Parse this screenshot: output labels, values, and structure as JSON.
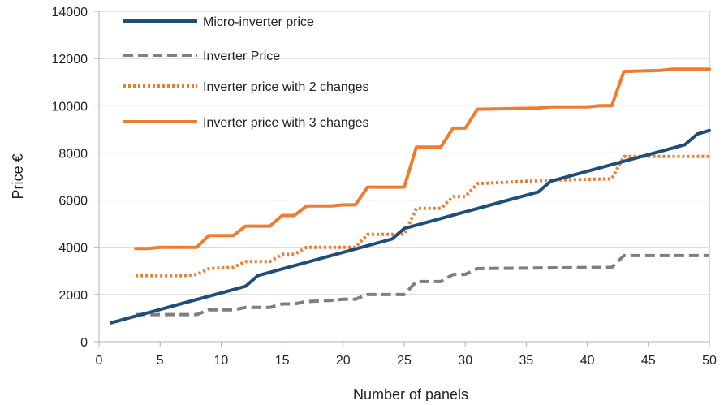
{
  "chart_data": {
    "type": "line",
    "xlabel": "Number of panels",
    "ylabel": "Price €",
    "xlim": [
      0,
      50
    ],
    "ylim": [
      0,
      14000
    ],
    "xticks": [
      0,
      5,
      10,
      15,
      20,
      25,
      30,
      35,
      40,
      45,
      50
    ],
    "yticks": [
      0,
      2000,
      4000,
      6000,
      8000,
      10000,
      12000,
      14000
    ],
    "grid": "horizontal",
    "legend_position": "top-left",
    "series": [
      {
        "name": "Micro-inverter price",
        "color": "#1f4e79",
        "dash": "solid",
        "points": [
          [
            1,
            800
          ],
          [
            12,
            2350
          ],
          [
            13,
            2800
          ],
          [
            24,
            4350
          ],
          [
            25,
            4800
          ],
          [
            36,
            6350
          ],
          [
            37,
            6800
          ],
          [
            48,
            8350
          ],
          [
            49,
            8800
          ],
          [
            50,
            8950
          ]
        ]
      },
      {
        "name": "Inverter Price",
        "color": "#7f7f7f",
        "dash": "dashed",
        "points": [
          [
            3,
            1150
          ],
          [
            8,
            1150
          ],
          [
            9,
            1350
          ],
          [
            11,
            1350
          ],
          [
            12,
            1450
          ],
          [
            14,
            1450
          ],
          [
            15,
            1600
          ],
          [
            16,
            1600
          ],
          [
            17,
            1700
          ],
          [
            19,
            1750
          ],
          [
            20,
            1800
          ],
          [
            21,
            1800
          ],
          [
            22,
            2000
          ],
          [
            25,
            2000
          ],
          [
            26,
            2550
          ],
          [
            28,
            2550
          ],
          [
            29,
            2850
          ],
          [
            30,
            2850
          ],
          [
            31,
            3100
          ],
          [
            42,
            3150
          ],
          [
            43,
            3650
          ],
          [
            50,
            3650
          ]
        ]
      },
      {
        "name": "Inverter price with 2 changes",
        "color": "#ed7d31",
        "dash": "dotted",
        "points": [
          [
            3,
            2800
          ],
          [
            7,
            2800
          ],
          [
            8,
            2850
          ],
          [
            9,
            3100
          ],
          [
            11,
            3150
          ],
          [
            12,
            3400
          ],
          [
            14,
            3400
          ],
          [
            15,
            3700
          ],
          [
            16,
            3700
          ],
          [
            17,
            4000
          ],
          [
            21,
            4000
          ],
          [
            22,
            4550
          ],
          [
            25,
            4550
          ],
          [
            26,
            5650
          ],
          [
            28,
            5650
          ],
          [
            29,
            6150
          ],
          [
            30,
            6150
          ],
          [
            31,
            6700
          ],
          [
            33,
            6750
          ],
          [
            37,
            6850
          ],
          [
            42,
            6900
          ],
          [
            43,
            7850
          ],
          [
            50,
            7850
          ]
        ]
      },
      {
        "name": "Inverter price with 3 changes",
        "color": "#ed7d31",
        "dash": "solid",
        "points": [
          [
            3,
            3950
          ],
          [
            4,
            3950
          ],
          [
            5,
            4000
          ],
          [
            8,
            4000
          ],
          [
            9,
            4500
          ],
          [
            11,
            4500
          ],
          [
            12,
            4900
          ],
          [
            14,
            4900
          ],
          [
            15,
            5350
          ],
          [
            16,
            5350
          ],
          [
            17,
            5750
          ],
          [
            19,
            5750
          ],
          [
            20,
            5800
          ],
          [
            21,
            5800
          ],
          [
            22,
            6550
          ],
          [
            25,
            6550
          ],
          [
            26,
            8250
          ],
          [
            28,
            8250
          ],
          [
            29,
            9050
          ],
          [
            30,
            9050
          ],
          [
            31,
            9850
          ],
          [
            36,
            9900
          ],
          [
            37,
            9950
          ],
          [
            40,
            9950
          ],
          [
            41,
            10000
          ],
          [
            42,
            10000
          ],
          [
            43,
            11450
          ],
          [
            46,
            11500
          ],
          [
            47,
            11550
          ],
          [
            50,
            11550
          ]
        ]
      }
    ]
  }
}
